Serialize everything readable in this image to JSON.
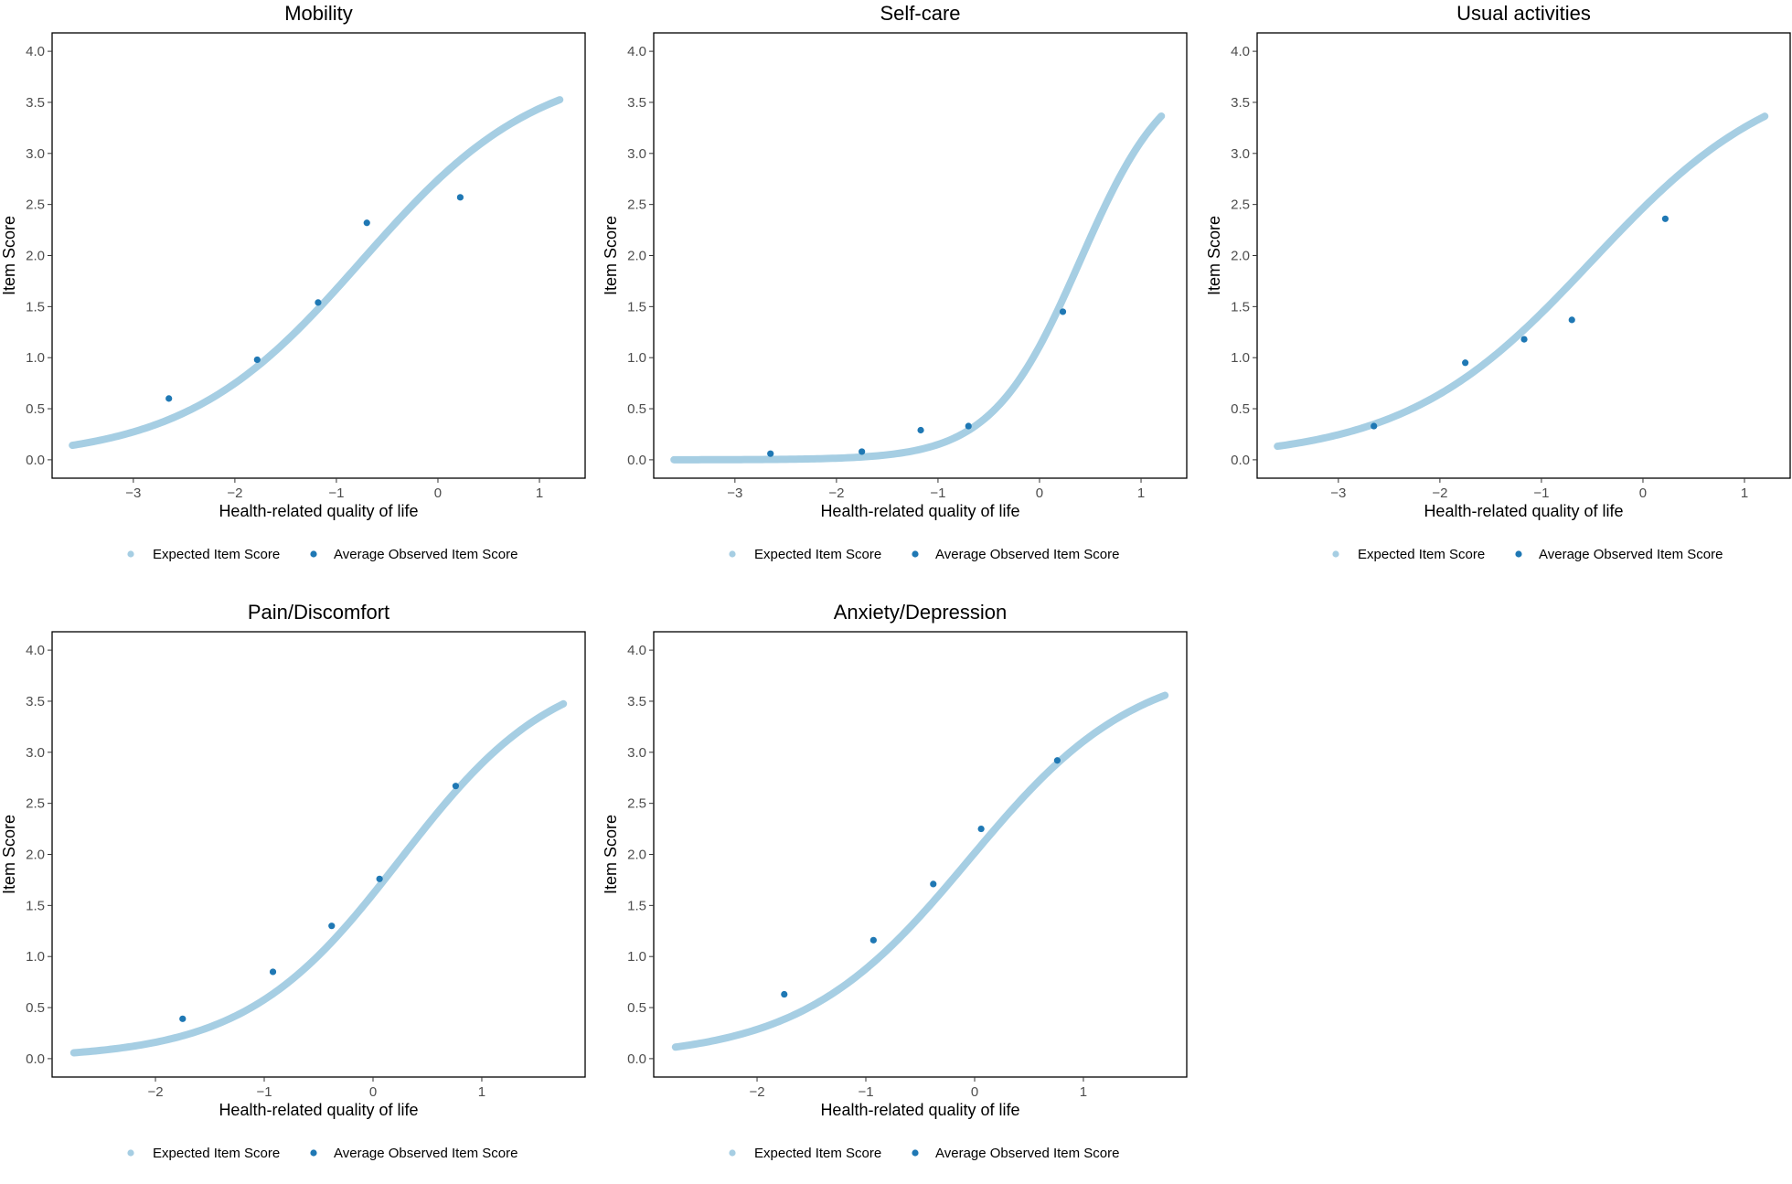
{
  "figure": {
    "colors": {
      "expected": "#a6cee3",
      "observed": "#1f78b4",
      "axis": "#000000",
      "tick_text": "#4d4d4d"
    }
  },
  "chart_data": [
    {
      "type": "scatter",
      "title": "Mobility",
      "xlabel": "Health-related quality of life",
      "ylabel": "Item Score",
      "xlim": [
        -3.8,
        1.45
      ],
      "ylim": [
        -0.18,
        4.18
      ],
      "xticks": [
        -3,
        -2,
        -1,
        0,
        1
      ],
      "yticks": [
        0.0,
        0.5,
        1.0,
        1.5,
        2.0,
        2.5,
        3.0,
        3.5,
        4.0
      ],
      "legend": [
        "Expected Item Score",
        "Average Observed Item Score"
      ],
      "expected_curve": {
        "model": "logistic",
        "L": 3.9,
        "k": 1.15,
        "x0": -0.75,
        "x_range": [
          -3.6,
          1.2
        ]
      },
      "observed": {
        "x": [
          -2.65,
          -1.78,
          -1.18,
          -0.7,
          0.22
        ],
        "y": [
          0.6,
          0.98,
          1.54,
          2.32,
          2.57
        ]
      }
    },
    {
      "type": "scatter",
      "title": "Self-care",
      "xlabel": "Health-related quality of life",
      "ylabel": "Item Score",
      "xlim": [
        -3.8,
        1.45
      ],
      "ylim": [
        -0.18,
        4.18
      ],
      "xticks": [
        -3,
        -2,
        -1,
        0,
        1
      ],
      "yticks": [
        0.0,
        0.5,
        1.0,
        1.5,
        2.0,
        2.5,
        3.0,
        3.5,
        4.0
      ],
      "legend": [
        "Expected Item Score",
        "Average Observed Item Score"
      ],
      "expected_curve": {
        "model": "logistic",
        "L": 3.9,
        "k": 2.3,
        "x0": 0.4,
        "x_range": [
          -3.6,
          1.2
        ]
      },
      "observed": {
        "x": [
          -2.65,
          -1.75,
          -1.17,
          -0.7,
          0.23
        ],
        "y": [
          0.06,
          0.08,
          0.29,
          0.33,
          1.45
        ]
      }
    },
    {
      "type": "scatter",
      "title": "Usual activities",
      "xlabel": "Health-related quality of life",
      "ylabel": "Item Score",
      "xlim": [
        -3.8,
        1.45
      ],
      "ylim": [
        -0.18,
        4.18
      ],
      "xticks": [
        -3,
        -2,
        -1,
        0,
        1
      ],
      "yticks": [
        0.0,
        0.5,
        1.0,
        1.5,
        2.0,
        2.5,
        3.0,
        3.5,
        4.0
      ],
      "legend": [
        "Expected Item Score",
        "Average Observed Item Score"
      ],
      "expected_curve": {
        "model": "logistic",
        "L": 3.9,
        "k": 1.08,
        "x0": -0.5,
        "x_range": [
          -3.6,
          1.2
        ]
      },
      "observed": {
        "x": [
          -2.65,
          -1.75,
          -1.17,
          -0.7,
          0.22
        ],
        "y": [
          0.33,
          0.95,
          1.18,
          1.37,
          2.36
        ]
      }
    },
    {
      "type": "scatter",
      "title": "Pain/Discomfort",
      "xlabel": "Health-related quality of life",
      "ylabel": "Item Score",
      "xlim": [
        -2.95,
        1.95
      ],
      "ylim": [
        -0.18,
        4.18
      ],
      "xticks": [
        -2,
        -1,
        0,
        1
      ],
      "yticks": [
        0.0,
        0.5,
        1.0,
        1.5,
        2.0,
        2.5,
        3.0,
        3.5,
        4.0
      ],
      "legend": [
        "Expected Item Score",
        "Average Observed Item Score"
      ],
      "expected_curve": {
        "model": "logistic",
        "L": 3.9,
        "k": 1.4,
        "x0": 0.25,
        "x_range": [
          -2.75,
          1.75
        ]
      },
      "observed": {
        "x": [
          -1.75,
          -0.92,
          -0.38,
          0.06,
          0.76
        ],
        "y": [
          0.39,
          0.85,
          1.3,
          1.76,
          2.67
        ]
      }
    },
    {
      "type": "scatter",
      "title": "Anxiety/Depression",
      "xlabel": "Health-related quality of life",
      "ylabel": "Item Score",
      "xlim": [
        -2.95,
        1.95
      ],
      "ylim": [
        -0.18,
        4.18
      ],
      "xticks": [
        -2,
        -1,
        0,
        1
      ],
      "yticks": [
        0.0,
        0.5,
        1.0,
        1.5,
        2.0,
        2.5,
        3.0,
        3.5,
        4.0
      ],
      "legend": [
        "Expected Item Score",
        "Average Observed Item Score"
      ],
      "expected_curve": {
        "model": "logistic",
        "L": 3.9,
        "k": 1.3,
        "x0": -0.05,
        "x_range": [
          -2.75,
          1.75
        ]
      },
      "observed": {
        "x": [
          -1.75,
          -0.93,
          -0.38,
          0.06,
          0.76
        ],
        "y": [
          0.63,
          1.16,
          1.71,
          2.25,
          2.92
        ]
      }
    }
  ]
}
